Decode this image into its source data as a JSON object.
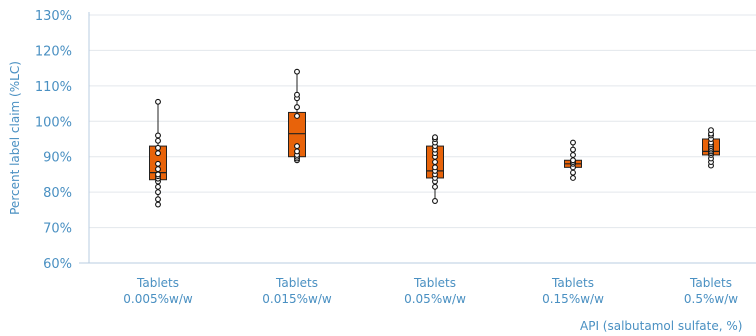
{
  "chart_data": {
    "type": "box",
    "ylabel": "Percent label claim (%LC)",
    "xlabel": "API (salbutamol sulfate, %)",
    "ylim": [
      60,
      130
    ],
    "yticks": [
      60,
      70,
      80,
      90,
      100,
      110,
      120,
      130
    ],
    "ytick_labels": [
      "60%",
      "70%",
      "80%",
      "90%",
      "100%",
      "110%",
      "120%",
      "130%"
    ],
    "grid": true,
    "colors": {
      "box_fill": "#e8630a",
      "box_stroke": "#222222",
      "grid": "#e3e7ec",
      "axis": "#b9cce0",
      "text": "#4a90c2"
    },
    "groups": [
      {
        "label_line1": "Tablets",
        "label_line2": "0.005%w/w",
        "whisker_low": 76.5,
        "q1": 83.5,
        "median": 85.5,
        "q3": 93,
        "whisker_high": 105.5,
        "points": [
          76.5,
          78,
          80,
          81.5,
          83,
          83.8,
          84.5,
          85,
          86.5,
          88,
          91,
          92.5,
          94.5,
          96,
          105.5
        ]
      },
      {
        "label_line1": "Tablets",
        "label_line2": "0.015%w/w",
        "whisker_low": 89,
        "q1": 90,
        "median": 96.5,
        "q3": 102.5,
        "whisker_high": 114,
        "points": [
          89,
          89.5,
          90,
          90.5,
          91.5,
          93,
          101.5,
          104,
          106.5,
          107.5,
          114
        ]
      },
      {
        "label_line1": "Tablets",
        "label_line2": "0.05%w/w",
        "whisker_low": 77.5,
        "q1": 84,
        "median": 86,
        "q3": 93,
        "whisker_high": 95.5,
        "points": [
          77.5,
          81.5,
          83,
          84,
          85,
          86,
          87,
          88.5,
          90,
          91,
          92,
          93,
          94,
          95,
          95.5
        ]
      },
      {
        "label_line1": "Tablets",
        "label_line2": "0.15%w/w",
        "whisker_low": 84,
        "q1": 87,
        "median": 88,
        "q3": 89,
        "whisker_high": 94,
        "points": [
          84,
          85.5,
          87,
          88,
          88.5,
          89,
          90.5,
          92,
          94
        ]
      },
      {
        "label_line1": "Tablets",
        "label_line2": "0.5%w/w",
        "whisker_low": 87.5,
        "q1": 90.5,
        "median": 91.5,
        "q3": 95,
        "whisker_high": 97.5,
        "points": [
          87.5,
          88.5,
          89.5,
          90.5,
          91,
          91.5,
          92,
          92.5,
          93,
          93.5,
          94,
          95,
          96,
          96.5,
          97.5
        ]
      }
    ]
  }
}
